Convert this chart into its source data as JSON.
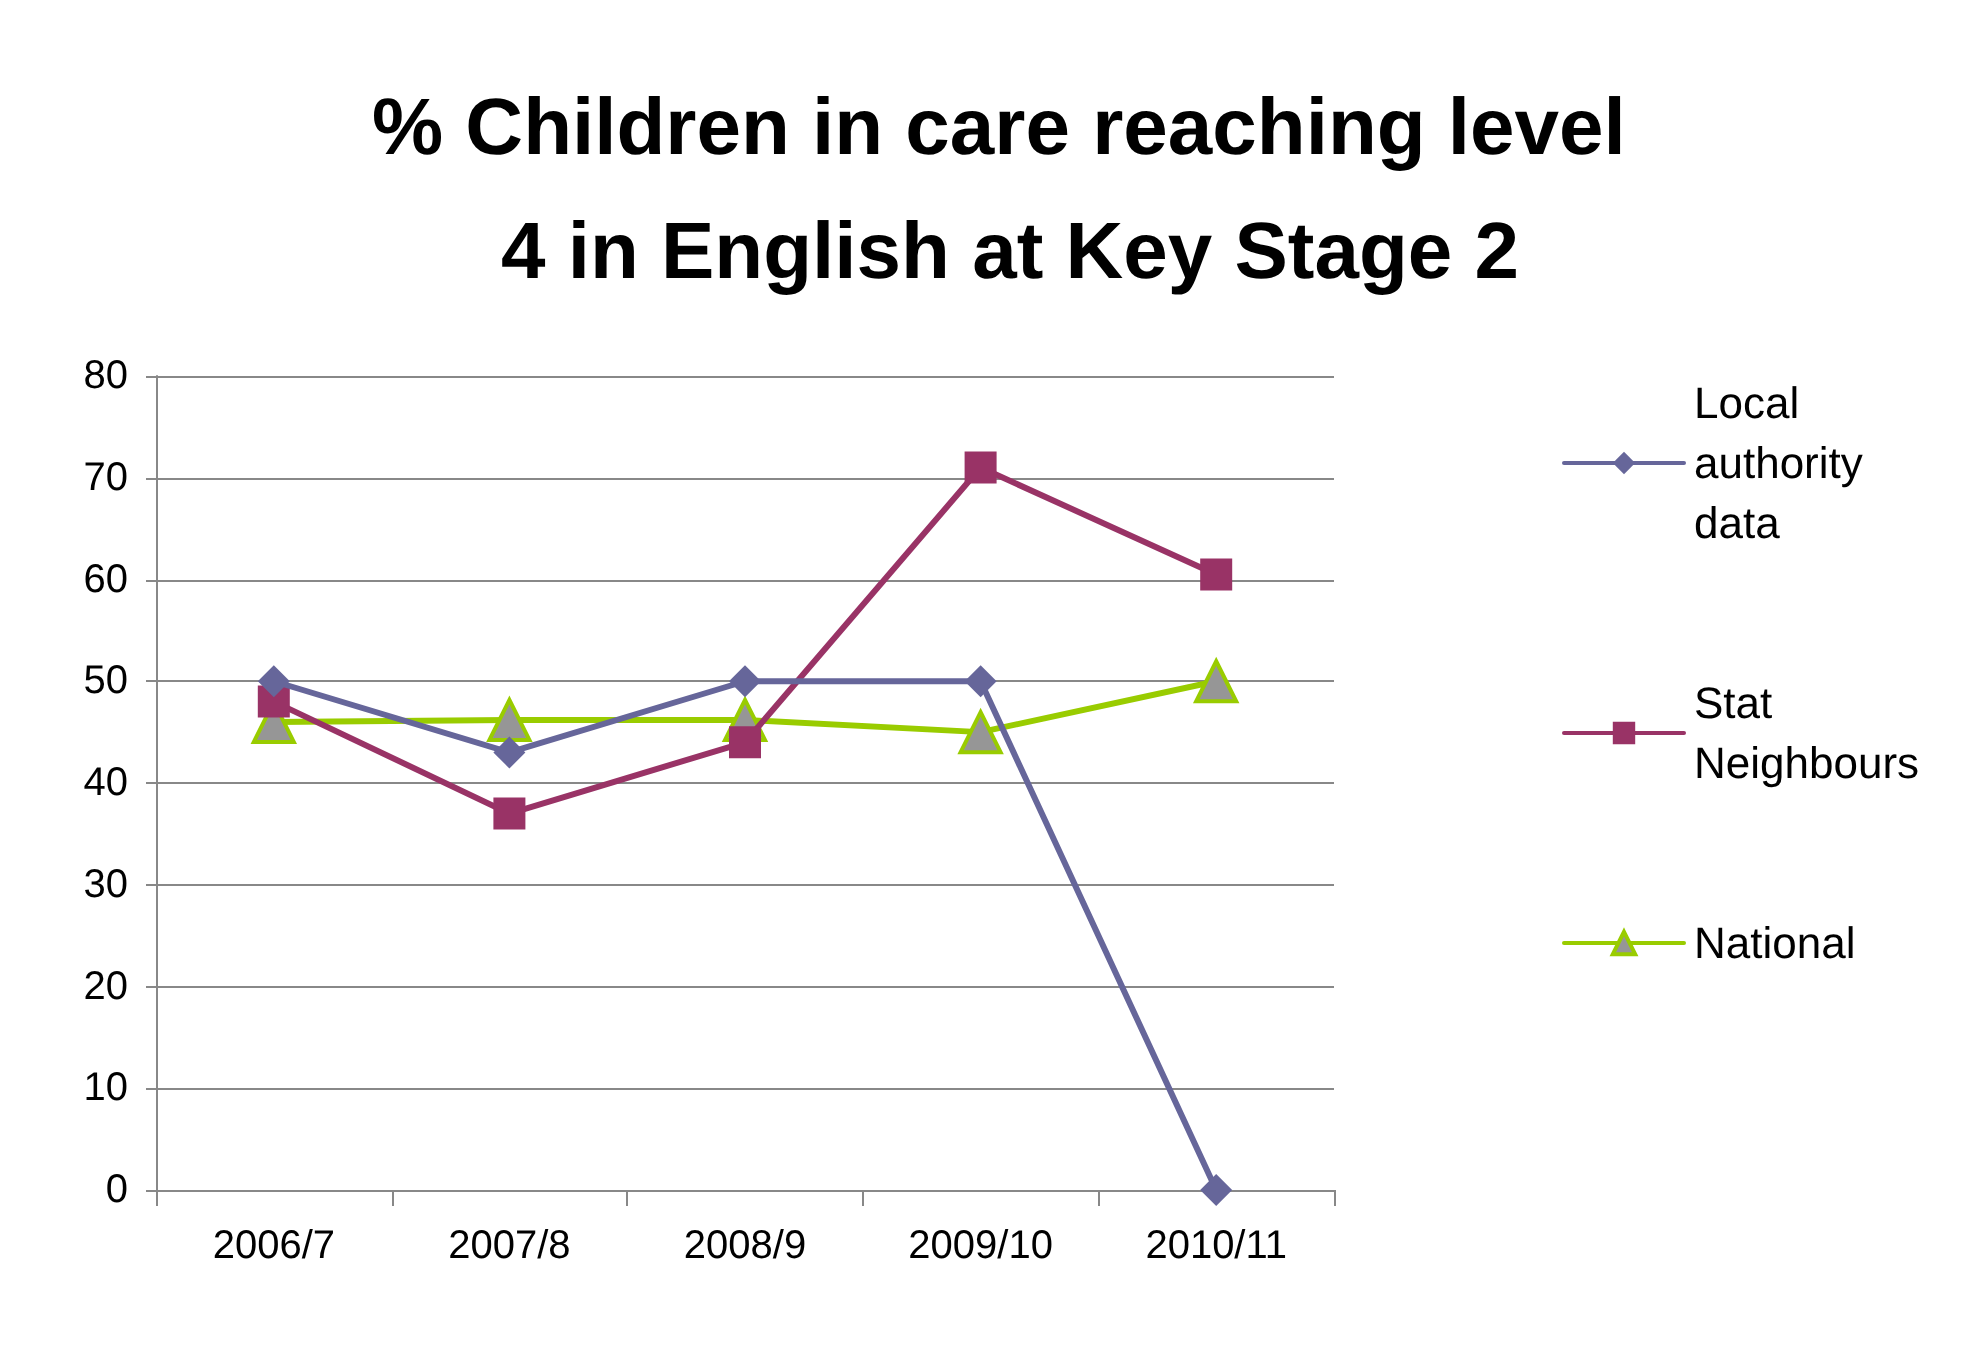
{
  "chart_data": {
    "type": "line",
    "title": "% Children in care reaching level 4 in English at Key Stage 2",
    "categories": [
      "2006/7",
      "2007/8",
      "2008/9",
      "2009/10",
      "2010/11"
    ],
    "series": [
      {
        "name": "Local authority data",
        "color": "#66669a",
        "marker": "diamond",
        "values": [
          50,
          43,
          50,
          50,
          0
        ]
      },
      {
        "name": "Stat Neighbours",
        "color": "#993366",
        "marker": "square",
        "values": [
          48,
          37,
          44,
          71,
          60.5
        ]
      },
      {
        "name": "National",
        "color": "#99cc00",
        "marker": "triangle",
        "values": [
          46,
          46.2,
          46.2,
          45,
          50
        ]
      }
    ],
    "ylim": [
      0,
      80
    ],
    "yticks": [
      0,
      10,
      20,
      30,
      40,
      50,
      60,
      70,
      80
    ],
    "grid": "y",
    "legend": "right"
  }
}
